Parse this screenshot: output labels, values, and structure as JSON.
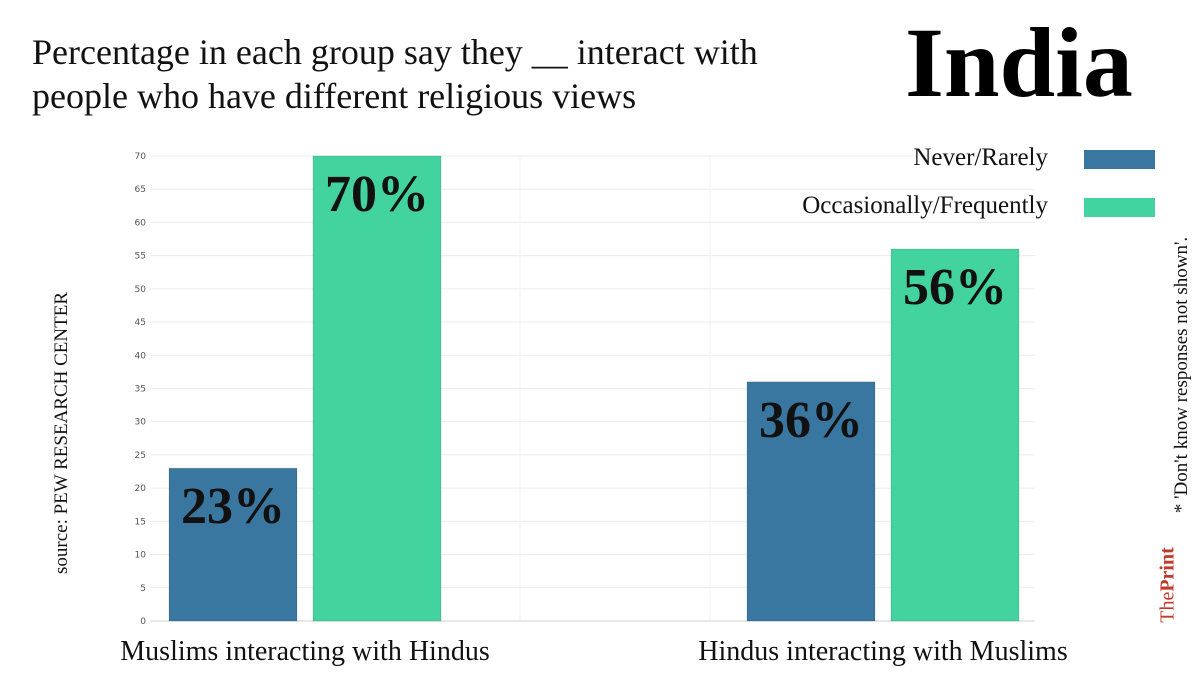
{
  "title": "Percentage in each group say they __ interact with people who have different religious views",
  "country": "India",
  "source": "source: PEW RESEARCH CENTER",
  "note": "* 'Don't know responses not shown'.",
  "brand": {
    "part1": "The",
    "part2": "Print"
  },
  "colors": {
    "never_rarely": "#3a77a0",
    "occasionally_frequently": "#42d39e",
    "brand": "#c0392b"
  },
  "chart_data": {
    "type": "bar",
    "categories": [
      "Muslims interacting with Hindus",
      "Hindus interacting with Muslims"
    ],
    "series": [
      {
        "name": "Never/Rarely",
        "values": [
          23,
          36
        ],
        "labels": [
          "23%",
          "36%"
        ],
        "color": "#3a77a0"
      },
      {
        "name": "Occasionally/Frequently",
        "values": [
          70,
          56
        ],
        "labels": [
          "70%",
          "56%"
        ],
        "color": "#42d39e"
      }
    ],
    "ylim": [
      0,
      70
    ],
    "yticks": [
      0,
      5,
      10,
      15,
      20,
      25,
      30,
      35,
      40,
      45,
      50,
      55,
      60,
      65,
      70
    ],
    "grid": true,
    "legend": "top-right"
  }
}
